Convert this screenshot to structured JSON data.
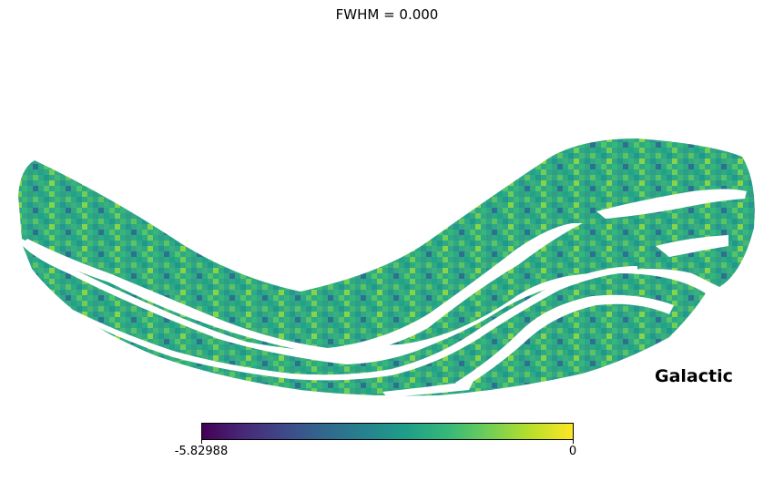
{
  "title": "FWHM = 0.000",
  "coord_system": "Galactic",
  "projection": "mollweide",
  "colormap": "viridis",
  "colors": {
    "min_color": "#440154",
    "mid_color": "#21918c",
    "max_color": "#fde725",
    "background": "#ffffff"
  },
  "colorbar": {
    "min": -5.82988,
    "max": 0,
    "min_label": "-5.82988",
    "max_label": "0",
    "orientation": "horizontal"
  }
}
